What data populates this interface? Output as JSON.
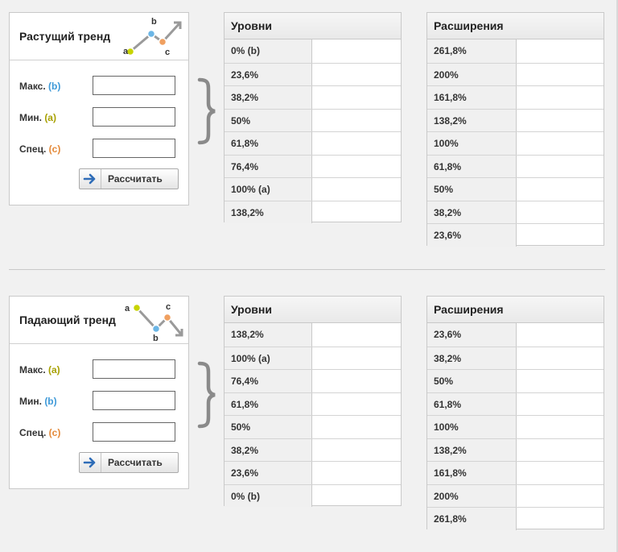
{
  "uptrend": {
    "title": "Растущий тренд",
    "icon": "uptrend-chart-icon",
    "icon_labels": {
      "a": "a",
      "b": "b",
      "c": "c"
    },
    "fields": [
      {
        "label": "Макс.",
        "tag": "(b)",
        "tag_color": "#3f9ad8",
        "value": ""
      },
      {
        "label": "Мин.",
        "tag": "(a)",
        "tag_color": "#a7a000",
        "value": ""
      },
      {
        "label": "Спец.",
        "tag": "(c)",
        "tag_color": "#e48a3a",
        "value": ""
      }
    ],
    "button": "Рассчитать",
    "levels": {
      "title": "Уровни",
      "rows": [
        {
          "label": "0% (b)",
          "value": ""
        },
        {
          "label": "23,6%",
          "value": ""
        },
        {
          "label": "38,2%",
          "value": ""
        },
        {
          "label": "50%",
          "value": ""
        },
        {
          "label": "61,8%",
          "value": ""
        },
        {
          "label": "76,4%",
          "value": ""
        },
        {
          "label": "100% (a)",
          "value": ""
        },
        {
          "label": "138,2%",
          "value": ""
        }
      ]
    },
    "extensions": {
      "title": "Расширения",
      "rows": [
        {
          "label": "261,8%",
          "value": ""
        },
        {
          "label": "200%",
          "value": ""
        },
        {
          "label": "161,8%",
          "value": ""
        },
        {
          "label": "138,2%",
          "value": ""
        },
        {
          "label": "100%",
          "value": ""
        },
        {
          "label": "61,8%",
          "value": ""
        },
        {
          "label": "50%",
          "value": ""
        },
        {
          "label": "38,2%",
          "value": ""
        },
        {
          "label": "23,6%",
          "value": ""
        }
      ]
    }
  },
  "downtrend": {
    "title": "Падающий тренд",
    "icon": "downtrend-chart-icon",
    "icon_labels": {
      "a": "a",
      "b": "b",
      "c": "c"
    },
    "fields": [
      {
        "label": "Макс.",
        "tag": "(a)",
        "tag_color": "#a7a000",
        "value": ""
      },
      {
        "label": "Мин.",
        "tag": "(b)",
        "tag_color": "#3f9ad8",
        "value": ""
      },
      {
        "label": "Спец.",
        "tag": "(c)",
        "tag_color": "#e48a3a",
        "value": ""
      }
    ],
    "button": "Рассчитать",
    "levels": {
      "title": "Уровни",
      "rows": [
        {
          "label": "138,2%",
          "value": ""
        },
        {
          "label": "100% (a)",
          "value": ""
        },
        {
          "label": "76,4%",
          "value": ""
        },
        {
          "label": "61,8%",
          "value": ""
        },
        {
          "label": "50%",
          "value": ""
        },
        {
          "label": "38,2%",
          "value": ""
        },
        {
          "label": "23,6%",
          "value": ""
        },
        {
          "label": "0% (b)",
          "value": ""
        }
      ]
    },
    "extensions": {
      "title": "Расширения",
      "rows": [
        {
          "label": "23,6%",
          "value": ""
        },
        {
          "label": "38,2%",
          "value": ""
        },
        {
          "label": "50%",
          "value": ""
        },
        {
          "label": "61,8%",
          "value": ""
        },
        {
          "label": "100%",
          "value": ""
        },
        {
          "label": "138,2%",
          "value": ""
        },
        {
          "label": "161,8%",
          "value": ""
        },
        {
          "label": "200%",
          "value": ""
        },
        {
          "label": "261,8%",
          "value": ""
        }
      ]
    }
  },
  "colors": {
    "point_a": "#c8d400",
    "point_b": "#6bb6e6",
    "point_c": "#f0a060",
    "line": "#999999",
    "arrow_button": "#2f6db8"
  }
}
